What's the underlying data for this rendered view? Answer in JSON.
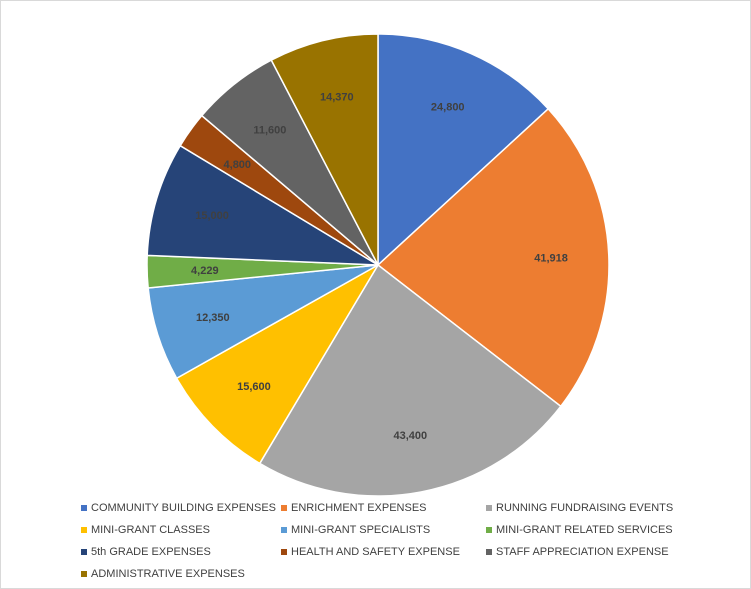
{
  "chart_data": {
    "type": "pie",
    "title": "",
    "legend_position": "bottom",
    "series": [
      {
        "name": "COMMUNITY BUILDING EXPENSES",
        "value": 24800,
        "label": "24,800",
        "color": "#4472C4"
      },
      {
        "name": "ENRICHMENT EXPENSES",
        "value": 41918,
        "label": "41,918",
        "color": "#ED7D31"
      },
      {
        "name": "RUNNING FUNDRAISING EVENTS",
        "value": 43400,
        "label": "43,400",
        "color": "#A5A5A5"
      },
      {
        "name": "MINI-GRANT CLASSES",
        "value": 15600,
        "label": "15,600",
        "color": "#FFC000"
      },
      {
        "name": "MINI-GRANT SPECIALISTS",
        "value": 12350,
        "label": "12,350",
        "color": "#5B9BD5"
      },
      {
        "name": "MINI-GRANT RELATED SERVICES",
        "value": 4229,
        "label": "4,229",
        "color": "#70AD47"
      },
      {
        "name": "5th GRADE EXPENSES",
        "value": 15000,
        "label": "15,000",
        "color": "#264478"
      },
      {
        "name": "HEALTH AND SAFETY EXPENSE",
        "value": 4800,
        "label": "4,800",
        "color": "#9E480E"
      },
      {
        "name": "STAFF APPRECIATION EXPENSE",
        "value": 11600,
        "label": "11,600",
        "color": "#636363"
      },
      {
        "name": "ADMINISTRATIVE EXPENSES",
        "value": 14370,
        "label": "14,370",
        "color": "#997300"
      }
    ]
  }
}
